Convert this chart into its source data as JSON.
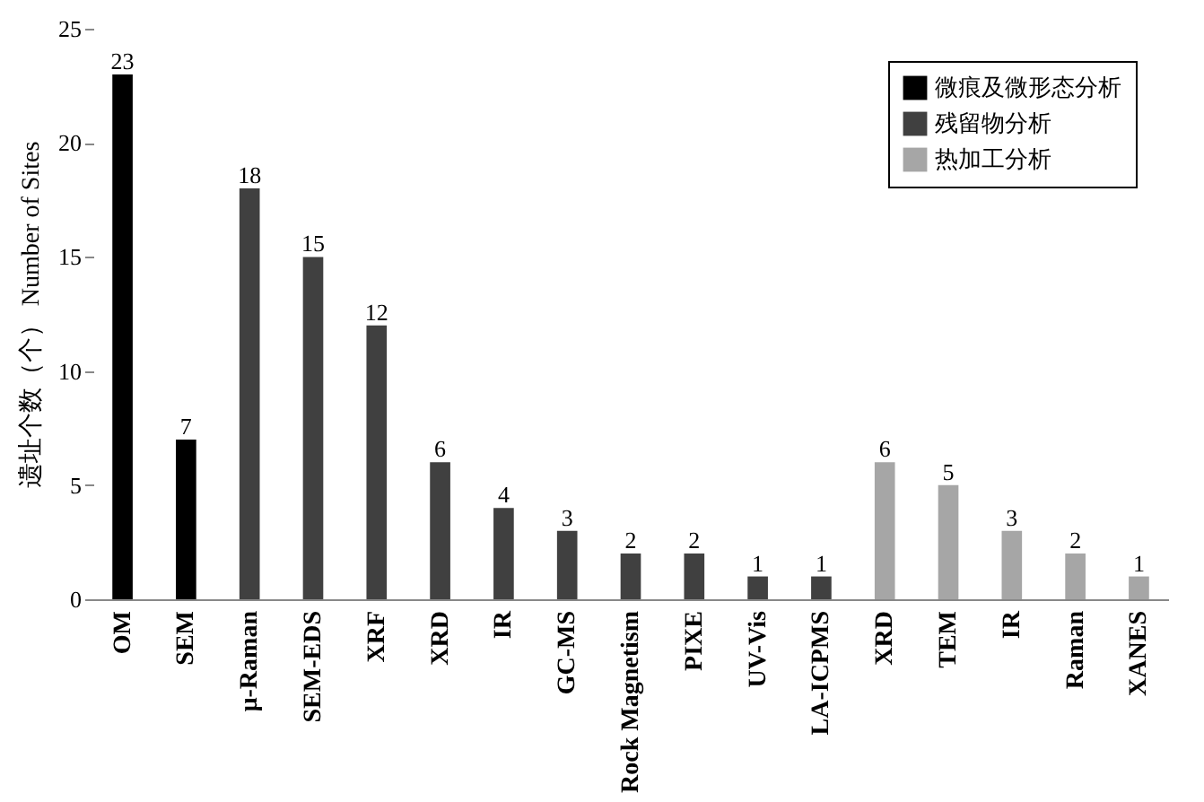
{
  "chart_data": {
    "type": "bar",
    "ylabel": "遗址个数（个） Number of Sites",
    "categories": [
      "OM",
      "SEM",
      "μ-Raman",
      "SEM-EDS",
      "XRF",
      "XRD",
      "IR",
      "GC-MS",
      "Rock Magnetism",
      "PIXE",
      "UV-Vis",
      "LA-ICPMS",
      "XRD",
      "TEM",
      "IR",
      "Raman",
      "XANES"
    ],
    "series": [
      {
        "name": "微痕及微形态分析",
        "color": "#000000",
        "values": [
          23,
          7,
          null,
          null,
          null,
          null,
          null,
          null,
          null,
          null,
          null,
          null,
          null,
          null,
          null,
          null,
          null
        ]
      },
      {
        "name": "残留物分析",
        "color": "#404040",
        "values": [
          null,
          null,
          18,
          15,
          12,
          6,
          4,
          3,
          2,
          2,
          1,
          1,
          null,
          null,
          null,
          null,
          null
        ]
      },
      {
        "name": "热加工分析",
        "color": "#a6a6a6",
        "values": [
          null,
          null,
          null,
          null,
          null,
          null,
          null,
          null,
          null,
          null,
          null,
          null,
          6,
          5,
          3,
          2,
          1
        ]
      }
    ],
    "ylim": [
      0,
      25
    ],
    "yticks": [
      0,
      5,
      10,
      15,
      20,
      25
    ],
    "grid": false,
    "legend": "top right",
    "data_labels": true
  }
}
